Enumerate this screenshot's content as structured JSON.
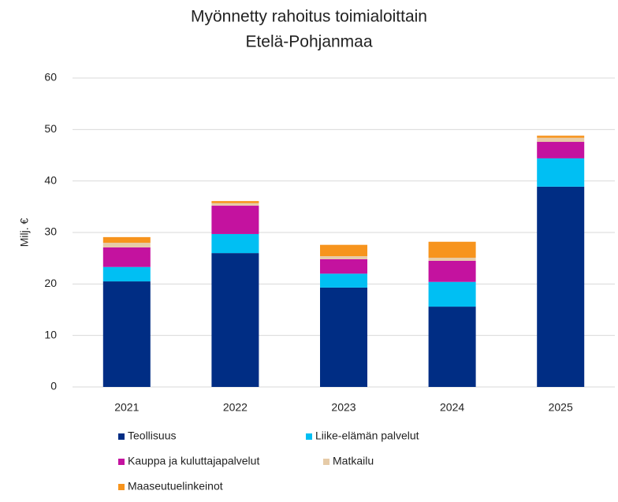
{
  "chart_data": {
    "type": "stacked_bar",
    "title": "Myönnetty rahoitus toimialoittain",
    "subtitle": "Etelä-Pohjanmaa",
    "y_label": "Milj. €",
    "categories": [
      "2021",
      "2022",
      "2023",
      "2024",
      "2025"
    ],
    "series": [
      {
        "name": "Teollisuus",
        "color": "#002d84",
        "values": [
          20.5,
          26.0,
          19.3,
          15.6,
          38.9
        ]
      },
      {
        "name": "Liike-elämän palvelut",
        "color": "#00bff3",
        "values": [
          2.8,
          3.7,
          2.7,
          4.8,
          5.5
        ]
      },
      {
        "name": "Kauppa ja kuluttajapalvelut",
        "color": "#c4129f",
        "values": [
          3.8,
          5.5,
          2.8,
          4.1,
          3.2
        ]
      },
      {
        "name": "Matkailu",
        "color": "#e6cba8",
        "values": [
          0.9,
          0.5,
          0.6,
          0.6,
          0.8
        ]
      },
      {
        "name": "Maaseutuelinkeinot",
        "color": "#f7941d",
        "values": [
          1.1,
          0.4,
          2.2,
          3.1,
          0.4
        ]
      }
    ],
    "ylim": [
      0,
      60
    ],
    "yticks": [
      0,
      10,
      20,
      30,
      40,
      50,
      60
    ],
    "grid": true,
    "legend": "bottom"
  }
}
